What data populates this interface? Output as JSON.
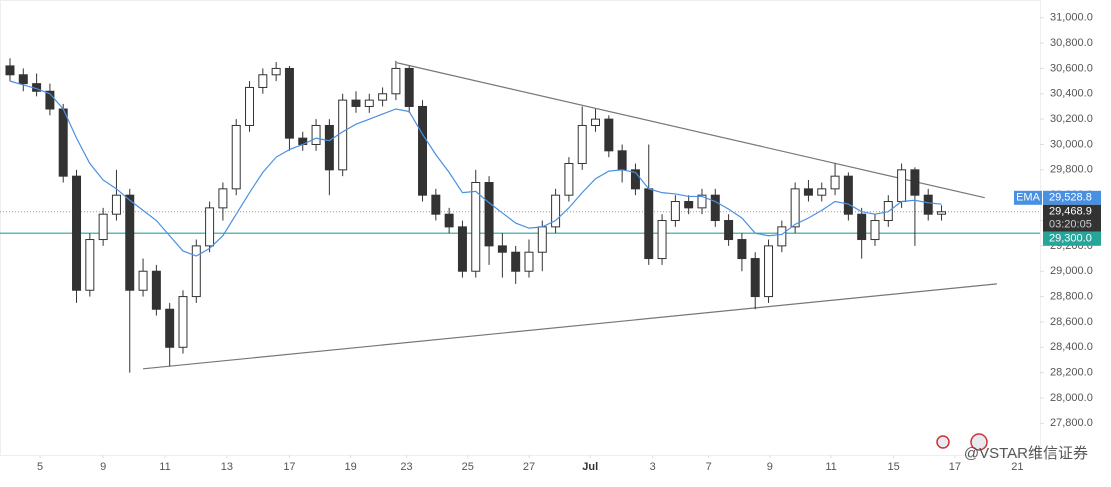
{
  "chart_data": {
    "type": "candlestick",
    "up_color": "#ffffff",
    "down_color": "#333333",
    "ohlc": [
      [
        30620,
        30680,
        30500,
        30550
      ],
      [
        30550,
        30600,
        30420,
        30480
      ],
      [
        30480,
        30560,
        30380,
        30420
      ],
      [
        30420,
        30480,
        30230,
        30280
      ],
      [
        30280,
        30320,
        29700,
        29750
      ],
      [
        29750,
        29800,
        28750,
        28850
      ],
      [
        28850,
        29300,
        28800,
        29250
      ],
      [
        29250,
        29500,
        29200,
        29450
      ],
      [
        29450,
        29800,
        29400,
        29600
      ],
      [
        29600,
        29650,
        28200,
        28850
      ],
      [
        28850,
        29100,
        28800,
        29000
      ],
      [
        29000,
        29050,
        28650,
        28700
      ],
      [
        28700,
        28750,
        28250,
        28400
      ],
      [
        28400,
        28850,
        28350,
        28800
      ],
      [
        28800,
        29250,
        28750,
        29200
      ],
      [
        29200,
        29550,
        29150,
        29500
      ],
      [
        29500,
        29700,
        29400,
        29650
      ],
      [
        29650,
        30200,
        29600,
        30150
      ],
      [
        30150,
        30500,
        30100,
        30450
      ],
      [
        30450,
        30600,
        30400,
        30550
      ],
      [
        30550,
        30650,
        30500,
        30600
      ],
      [
        30600,
        30620,
        29950,
        30050
      ],
      [
        30050,
        30100,
        29950,
        30000
      ],
      [
        30000,
        30200,
        29950,
        30150
      ],
      [
        30150,
        30200,
        29600,
        29800
      ],
      [
        29800,
        30400,
        29750,
        30350
      ],
      [
        30350,
        30420,
        30250,
        30300
      ],
      [
        30300,
        30400,
        30250,
        30350
      ],
      [
        30350,
        30450,
        30300,
        30400
      ],
      [
        30400,
        30660,
        30350,
        30600
      ],
      [
        30600,
        30620,
        30250,
        30300
      ],
      [
        30300,
        30350,
        29550,
        29600
      ],
      [
        29600,
        29650,
        29400,
        29450
      ],
      [
        29450,
        29500,
        29300,
        29350
      ],
      [
        29350,
        29400,
        28950,
        29000
      ],
      [
        29000,
        29800,
        28950,
        29700
      ],
      [
        29700,
        29750,
        29050,
        29200
      ],
      [
        29200,
        29300,
        28950,
        29150
      ],
      [
        29150,
        29200,
        28900,
        29000
      ],
      [
        29000,
        29250,
        28950,
        29150
      ],
      [
        29150,
        29400,
        29000,
        29350
      ],
      [
        29350,
        29650,
        29300,
        29600
      ],
      [
        29600,
        29900,
        29550,
        29850
      ],
      [
        29850,
        30300,
        29800,
        30150
      ],
      [
        30150,
        30280,
        30100,
        30200
      ],
      [
        30200,
        30230,
        29900,
        29950
      ],
      [
        29950,
        30000,
        29700,
        29800
      ],
      [
        29800,
        29850,
        29600,
        29650
      ],
      [
        29650,
        30000,
        29050,
        29100
      ],
      [
        29100,
        29450,
        29050,
        29400
      ],
      [
        29400,
        29600,
        29350,
        29550
      ],
      [
        29550,
        29600,
        29450,
        29500
      ],
      [
        29500,
        29650,
        29450,
        29600
      ],
      [
        29600,
        29650,
        29350,
        29400
      ],
      [
        29400,
        29450,
        29200,
        29250
      ],
      [
        29250,
        29300,
        29000,
        29100
      ],
      [
        29100,
        29150,
        28700,
        28800
      ],
      [
        28800,
        29250,
        28750,
        29200
      ],
      [
        29200,
        29400,
        29150,
        29350
      ],
      [
        29350,
        29700,
        29300,
        29650
      ],
      [
        29650,
        29720,
        29550,
        29600
      ],
      [
        29600,
        29700,
        29550,
        29650
      ],
      [
        29650,
        29850,
        29600,
        29750
      ],
      [
        29750,
        29780,
        29400,
        29450
      ],
      [
        29450,
        29500,
        29100,
        29250
      ],
      [
        29250,
        29450,
        29200,
        29400
      ],
      [
        29400,
        29600,
        29350,
        29550
      ],
      [
        29550,
        29850,
        29500,
        29800
      ],
      [
        29800,
        29820,
        29200,
        29600
      ],
      [
        29600,
        29650,
        29400,
        29450
      ],
      [
        29450,
        29520,
        29400,
        29468.9
      ]
    ],
    "ema": {
      "name": "EMA",
      "color": "#4a90e2",
      "values": [
        30500,
        30470,
        30440,
        30400,
        30280,
        30050,
        29850,
        29720,
        29650,
        29560,
        29480,
        29400,
        29280,
        29160,
        29120,
        29180,
        29280,
        29450,
        29620,
        29780,
        29900,
        29960,
        30000,
        30050,
        30030,
        30100,
        30160,
        30200,
        30240,
        30280,
        30260,
        30080,
        29920,
        29780,
        29620,
        29630,
        29540,
        29460,
        29380,
        29340,
        29350,
        29400,
        29500,
        29620,
        29730,
        29790,
        29800,
        29780,
        29650,
        29620,
        29610,
        29590,
        29590,
        29550,
        29490,
        29420,
        29300,
        29280,
        29290,
        29370,
        29420,
        29480,
        29550,
        29530,
        29470,
        29450,
        29470,
        29550,
        29560,
        29540,
        29528.8
      ],
      "last": {
        "value": 29528.8,
        "label": "29,528.8"
      }
    },
    "last_price": {
      "value": 29468.9,
      "label": "29,468.9",
      "countdown": "03:20:05"
    },
    "level": {
      "value": 29300,
      "label": "29,300.0",
      "color": "#26a69a"
    },
    "trendlines": [
      {
        "x": [
          29.08,
          73.25
        ],
        "y": [
          30645,
          29580
        ]
      },
      {
        "x": [
          10,
          74.16
        ],
        "y": [
          28230,
          28900
        ]
      }
    ],
    "xlim": [
      -0.75,
      77.4
    ],
    "ylim": [
      27550,
      31140
    ],
    "xticks": [
      {
        "value": 2.26,
        "label": "5"
      },
      {
        "value": 7,
        "label": "9"
      },
      {
        "value": 11.65,
        "label": "11"
      },
      {
        "value": 16.3,
        "label": "13"
      },
      {
        "value": 21,
        "label": "17"
      },
      {
        "value": 25.6,
        "label": "19"
      },
      {
        "value": 29.8,
        "label": "23"
      },
      {
        "value": 34.4,
        "label": "25"
      },
      {
        "value": 39,
        "label": "27"
      },
      {
        "value": 43.6,
        "label": "Jul"
      },
      {
        "value": 48.3,
        "label": "3"
      },
      {
        "value": 52.5,
        "label": "7"
      },
      {
        "value": 57.1,
        "label": "9"
      },
      {
        "value": 61.7,
        "label": "11"
      },
      {
        "value": 66.4,
        "label": "15"
      },
      {
        "value": 71,
        "label": "17"
      },
      {
        "value": 75.7,
        "label": "21"
      }
    ],
    "yticks": [
      {
        "value": 27800,
        "label": "27,800.0"
      },
      {
        "value": 28000,
        "label": "28,000.0"
      },
      {
        "value": 28200,
        "label": "28,200.0"
      },
      {
        "value": 28400,
        "label": "28,400.0"
      },
      {
        "value": 28600,
        "label": "28,600.0"
      },
      {
        "value": 28800,
        "label": "28,800.0"
      },
      {
        "value": 29000,
        "label": "29,000.0"
      },
      {
        "value": 29200,
        "label": "29,200.0"
      },
      {
        "value": 29400,
        "label": "29,400.0"
      },
      {
        "value": 29600,
        "label": "29,600.0"
      },
      {
        "value": 29800,
        "label": "29,800.0"
      },
      {
        "value": 30000,
        "label": "30,000.0"
      },
      {
        "value": 30200,
        "label": "30,200.0"
      },
      {
        "value": 30400,
        "label": "30,400.0"
      },
      {
        "value": 30600,
        "label": "30,600.0"
      },
      {
        "value": 30800,
        "label": "30,800.0"
      },
      {
        "value": 31000,
        "label": "31,000.0"
      }
    ],
    "watermark": "@VSTAR维信证券"
  }
}
